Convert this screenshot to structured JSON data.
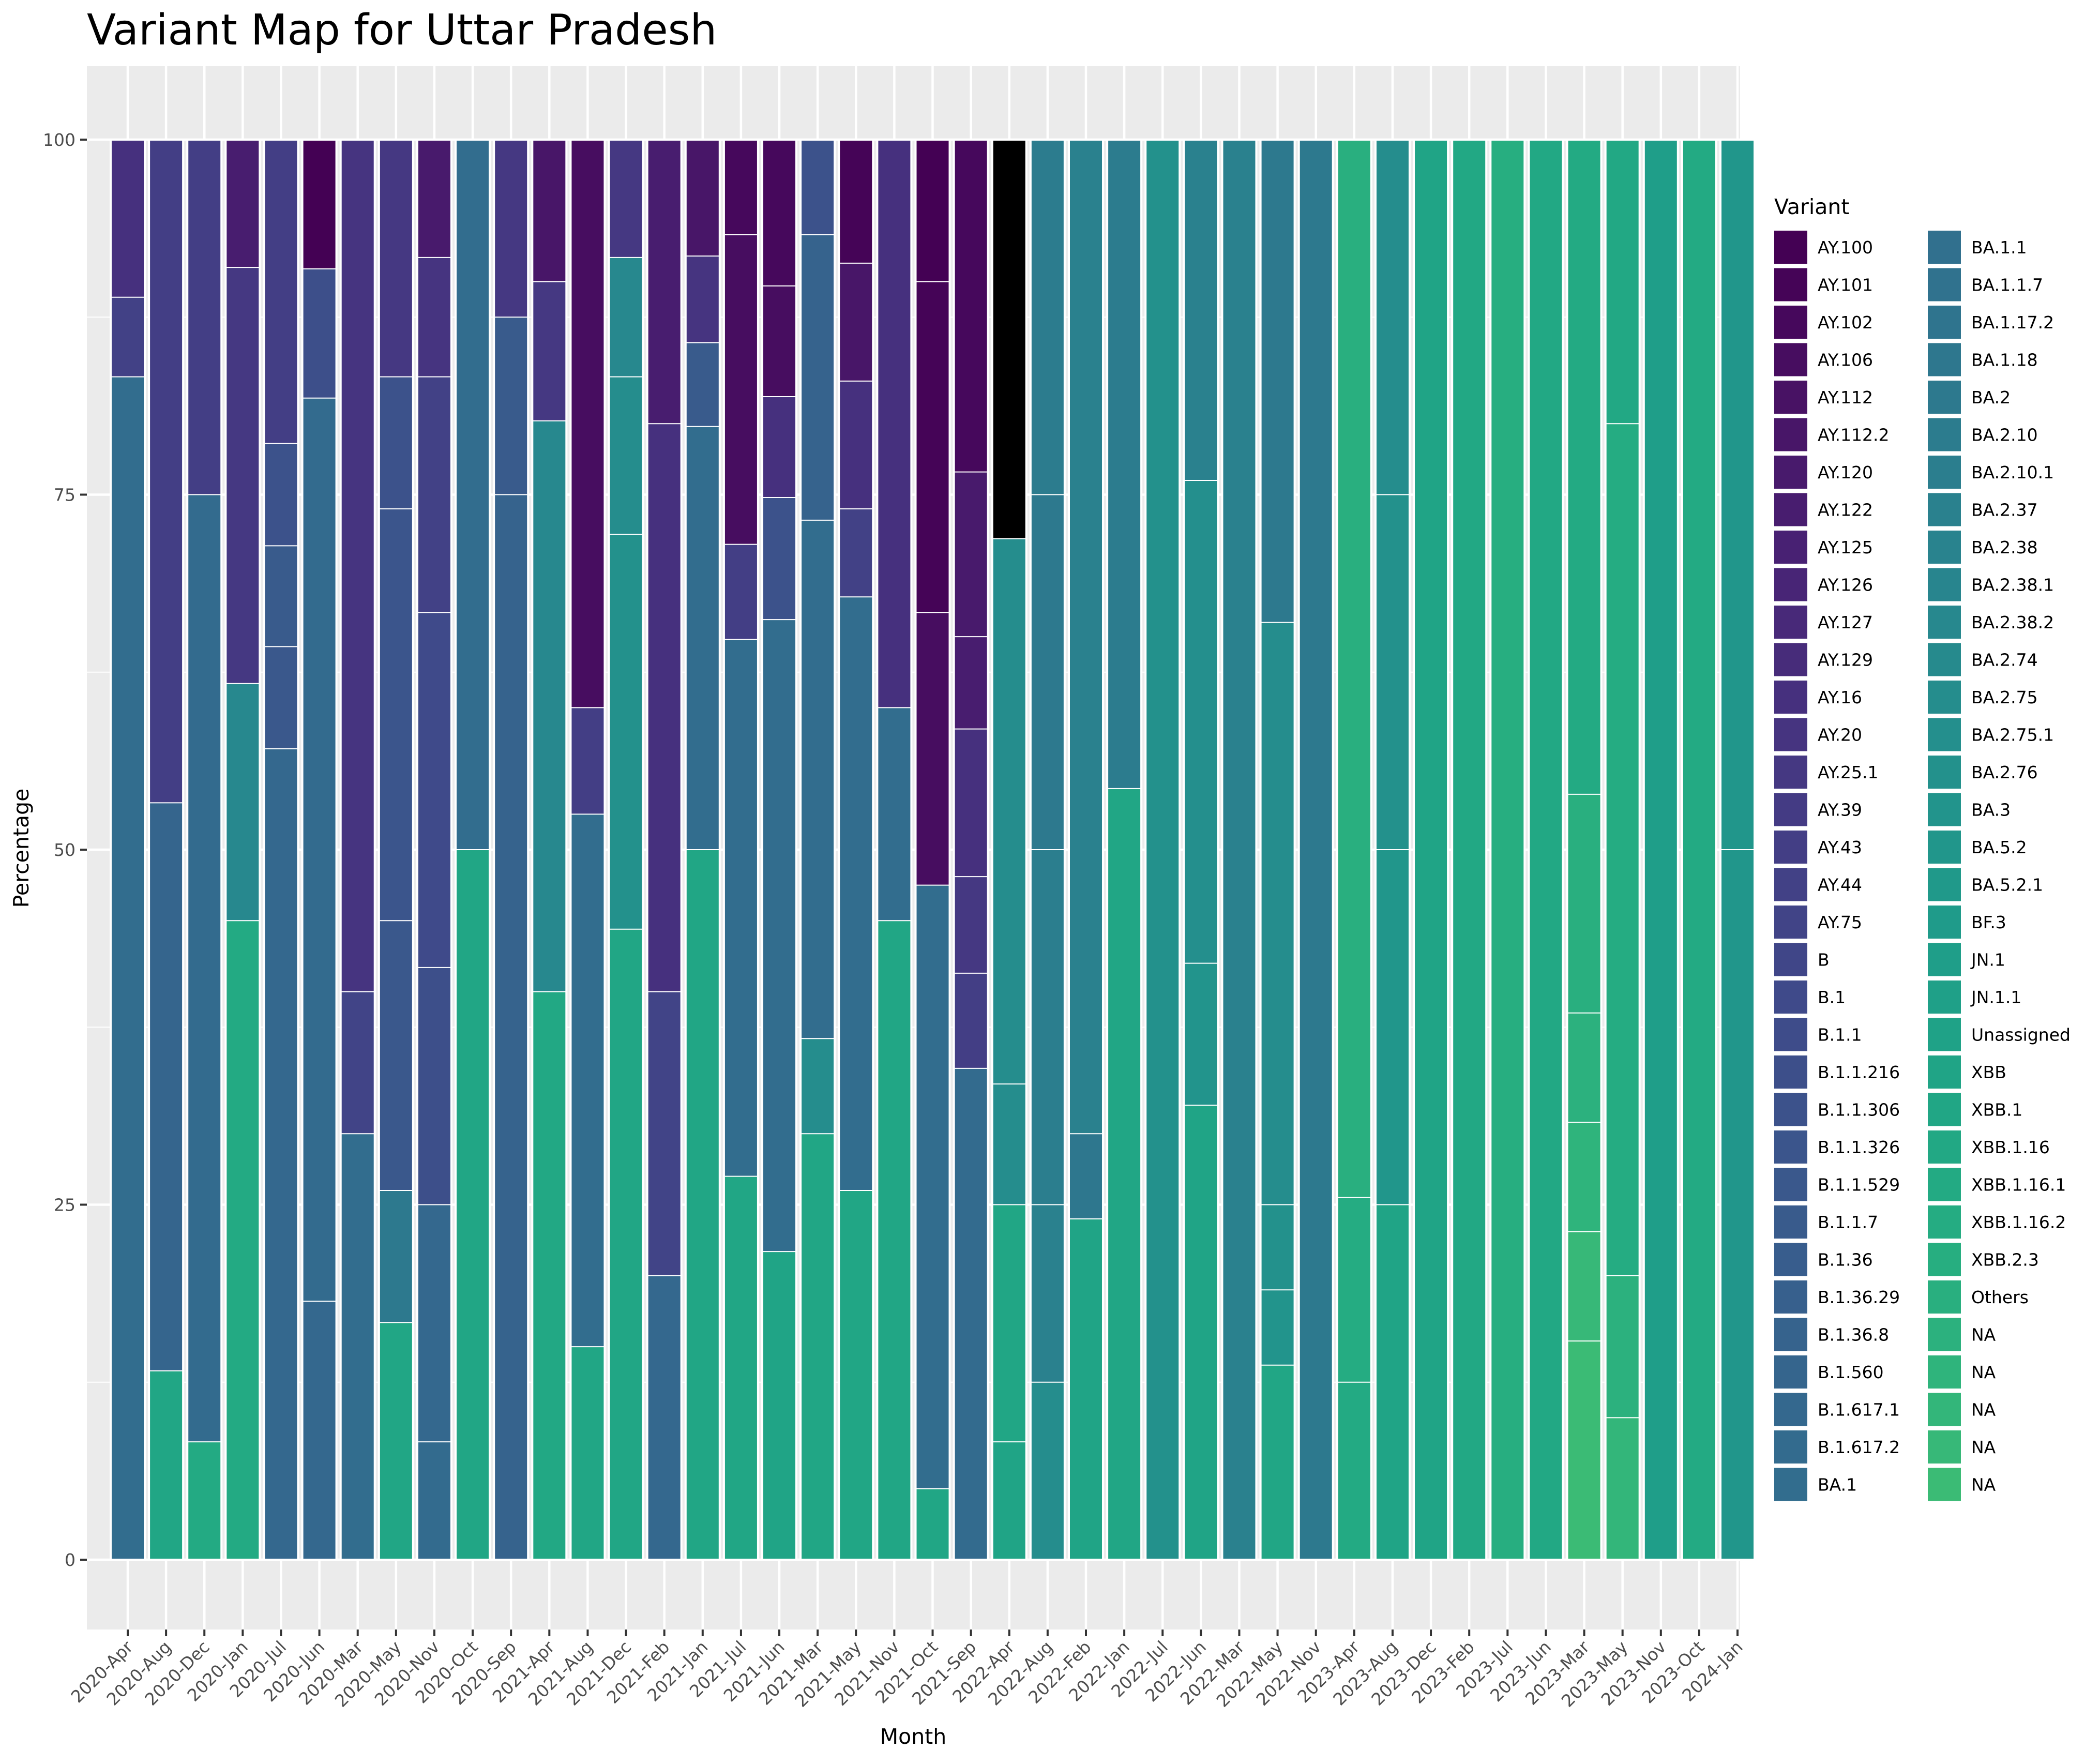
{
  "chart_data": {
    "type": "bar",
    "stacked": true,
    "title": "Variant Map for Uttar Pradesh",
    "xlabel": "Month",
    "ylabel": "Percentage",
    "ylim": [
      0,
      100
    ],
    "yticks": [
      0,
      25,
      50,
      75,
      100
    ],
    "grid": true,
    "legend_position": "right",
    "legend_title": "Variant",
    "categories": [
      "2020-Apr",
      "2020-Aug",
      "2020-Dec",
      "2020-Jan",
      "2020-Jul",
      "2020-Jun",
      "2020-Mar",
      "2020-May",
      "2020-Nov",
      "2020-Oct",
      "2020-Sep",
      "2021-Apr",
      "2021-Aug",
      "2021-Dec",
      "2021-Feb",
      "2021-Jan",
      "2021-Jul",
      "2021-Jun",
      "2021-Mar",
      "2021-May",
      "2021-Nov",
      "2021-Oct",
      "2021-Sep",
      "2022-Apr",
      "2022-Aug",
      "2022-Feb",
      "2022-Jan",
      "2022-Jul",
      "2022-Jun",
      "2022-Mar",
      "2022-May",
      "2022-Nov",
      "2023-Apr",
      "2023-Aug",
      "2023-Dec",
      "2023-Feb",
      "2023-Jul",
      "2023-Jun",
      "2023-Mar",
      "2023-May",
      "2023-Nov",
      "2023-Oct",
      "2024-Jan"
    ],
    "variants": [
      {
        "name": "AY.100",
        "color": "#440154"
      },
      {
        "name": "AY.101",
        "color": "#450457"
      },
      {
        "name": "AY.102",
        "color": "#46085c"
      },
      {
        "name": "AY.106",
        "color": "#470d60"
      },
      {
        "name": "AY.112",
        "color": "#481264"
      },
      {
        "name": "AY.112.2",
        "color": "#481668"
      },
      {
        "name": "AY.120",
        "color": "#481a6c"
      },
      {
        "name": "AY.122",
        "color": "#481d6f"
      },
      {
        "name": "AY.125",
        "color": "#482173"
      },
      {
        "name": "AY.126",
        "color": "#482576"
      },
      {
        "name": "AY.127",
        "color": "#482979"
      },
      {
        "name": "AY.129",
        "color": "#472c7a"
      },
      {
        "name": "AY.16",
        "color": "#46307e"
      },
      {
        "name": "AY.20",
        "color": "#463480"
      },
      {
        "name": "AY.25.1",
        "color": "#453882"
      },
      {
        "name": "AY.39",
        "color": "#443b84"
      },
      {
        "name": "AY.43",
        "color": "#433e85"
      },
      {
        "name": "AY.44",
        "color": "#424186"
      },
      {
        "name": "AY.75",
        "color": "#414487"
      },
      {
        "name": "B",
        "color": "#404688"
      },
      {
        "name": "B.1",
        "color": "#3f4a8a"
      },
      {
        "name": "B.1.1",
        "color": "#3e4c8a"
      },
      {
        "name": "B.1.1.216",
        "color": "#3d4f8a"
      },
      {
        "name": "B.1.1.306",
        "color": "#3c528b"
      },
      {
        "name": "B.1.1.326",
        "color": "#3b558c"
      },
      {
        "name": "B.1.1.529",
        "color": "#3a588c"
      },
      {
        "name": "B.1.1.7",
        "color": "#395b8c"
      },
      {
        "name": "B.1.36",
        "color": "#385d8d"
      },
      {
        "name": "B.1.36.29",
        "color": "#37608d"
      },
      {
        "name": "B.1.36.8",
        "color": "#36638d"
      },
      {
        "name": "B.1.560",
        "color": "#35658d"
      },
      {
        "name": "B.1.617.1",
        "color": "#34688e"
      },
      {
        "name": "B.1.617.2",
        "color": "#336b8e"
      },
      {
        "name": "BA.1",
        "color": "#326d8e"
      },
      {
        "name": "BA.1.1",
        "color": "#31708e"
      },
      {
        "name": "BA.1.1.7",
        "color": "#30728e"
      },
      {
        "name": "BA.1.17.2",
        "color": "#2f748e"
      },
      {
        "name": "BA.1.18",
        "color": "#2e778e"
      },
      {
        "name": "BA.2",
        "color": "#2d798e"
      },
      {
        "name": "BA.2.10",
        "color": "#2c7c8e"
      },
      {
        "name": "BA.2.10.1",
        "color": "#2b7e8e"
      },
      {
        "name": "BA.2.37",
        "color": "#2a818e"
      },
      {
        "name": "BA.2.38",
        "color": "#29838e"
      },
      {
        "name": "BA.2.38.1",
        "color": "#28858e"
      },
      {
        "name": "BA.2.38.2",
        "color": "#27888e"
      },
      {
        "name": "BA.2.74",
        "color": "#268a8d"
      },
      {
        "name": "BA.2.75",
        "color": "#258d8d"
      },
      {
        "name": "BA.2.75.1",
        "color": "#248f8d"
      },
      {
        "name": "BA.2.76",
        "color": "#23918c"
      },
      {
        "name": "BA.3",
        "color": "#22948c"
      },
      {
        "name": "BA.5.2",
        "color": "#21968b"
      },
      {
        "name": "BA.5.2.1",
        "color": "#20998a"
      },
      {
        "name": "BF.3",
        "color": "#1f9b8a"
      },
      {
        "name": "JN.1",
        "color": "#1f9e89"
      },
      {
        "name": "JN.1.1",
        "color": "#1fa088"
      },
      {
        "name": "Unassigned",
        "color": "#1fa287"
      },
      {
        "name": "XBB",
        "color": "#20a486"
      },
      {
        "name": "XBB.1",
        "color": "#21a685"
      },
      {
        "name": "XBB.1.16",
        "color": "#22a884"
      },
      {
        "name": "XBB.1.16.1",
        "color": "#23aa83"
      },
      {
        "name": "XBB.1.16.2",
        "color": "#25ac82"
      },
      {
        "name": "XBB.2.3",
        "color": "#27ae80"
      },
      {
        "name": "Others",
        "color": "#29af7f"
      },
      {
        "name": "NA",
        "color": "#2cb17e"
      },
      {
        "name": "NA",
        "color": "#2fb47c"
      },
      {
        "name": "NA",
        "color": "#33b67a"
      },
      {
        "name": "NA",
        "color": "#37b878"
      },
      {
        "name": "NA",
        "color": "#3bbb75"
      }
    ],
    "boundaries": [
      [
        0,
        83.3,
        88.9,
        100
      ],
      [
        0,
        13.3,
        53.3,
        100
      ],
      [
        0,
        8.3,
        75,
        100
      ],
      [
        0,
        45,
        61.7,
        91,
        100
      ],
      [
        0,
        57.1,
        64.3,
        71.4,
        78.6,
        100
      ],
      [
        0,
        18.2,
        81.8,
        90.9,
        100
      ],
      [
        0,
        30,
        40,
        100
      ],
      [
        0,
        16.7,
        26,
        45,
        74,
        83.3,
        100
      ],
      [
        0,
        8.3,
        25,
        41.7,
        66.7,
        83.3,
        91.7,
        100
      ],
      [
        0,
        50,
        100
      ],
      [
        0,
        75,
        87.5,
        100
      ],
      [
        0,
        40,
        80.2,
        90,
        100
      ],
      [
        0,
        15,
        52.5,
        60,
        100
      ],
      [
        0,
        44.4,
        72.2,
        83.3,
        91.7,
        100
      ],
      [
        0,
        20,
        40,
        80,
        100
      ],
      [
        0,
        50,
        79.8,
        85.7,
        91.8,
        100
      ],
      [
        0,
        27,
        64.8,
        71.5,
        93.3,
        100
      ],
      [
        0,
        21.7,
        66.2,
        74.8,
        81.9,
        89.7,
        100
      ],
      [
        0,
        30,
        36.7,
        73.2,
        93.3,
        100
      ],
      [
        0,
        26,
        67.8,
        74,
        83,
        91.3,
        100
      ],
      [
        0,
        45,
        60,
        100
      ],
      [
        0,
        5,
        47.5,
        66.7,
        90,
        100
      ],
      [
        0,
        34.6,
        41.3,
        48.1,
        58.5,
        65,
        76.6,
        100
      ],
      [
        0,
        8.3,
        25,
        33.5,
        71.9,
        100
      ],
      [
        0,
        12.5,
        25,
        50,
        75,
        100
      ],
      [
        0,
        24,
        30,
        100
      ],
      [
        0,
        54.3,
        100
      ],
      [
        0,
        100
      ],
      [
        0,
        32,
        42,
        76,
        100
      ],
      [
        0,
        100
      ],
      [
        0,
        13.7,
        19,
        25,
        66,
        100
      ],
      [
        0,
        100
      ],
      [
        0,
        12.5,
        25.5,
        100
      ],
      [
        0,
        25,
        50,
        75,
        100
      ],
      [
        0,
        100
      ],
      [
        0,
        100
      ],
      [
        0,
        100
      ],
      [
        0,
        100
      ],
      [
        0,
        15.4,
        23.1,
        30.8,
        38.5,
        53.9,
        100
      ],
      [
        0,
        10,
        20,
        80,
        100
      ],
      [
        0,
        100
      ],
      [
        0,
        100
      ],
      [
        0,
        50,
        100
      ]
    ],
    "colors": [
      [
        "#326d8e",
        "#424186",
        "#46307e"
      ],
      [
        "#21a685",
        "#35658d",
        "#433e85"
      ],
      [
        "#23aa83",
        "#336b8e",
        "#433e85"
      ],
      [
        "#23aa83",
        "#27888e",
        "#453882",
        "#481d6f"
      ],
      [
        "#34688e",
        "#3a588c",
        "#395b8c",
        "#3c528b",
        "#433e85"
      ],
      [
        "#34688e",
        "#336b8e",
        "#3d4f8a",
        "#440154"
      ],
      [
        "#326d8e",
        "#414487",
        "#463480"
      ],
      [
        "#21a685",
        "#2d798e",
        "#3a588c",
        "#3b558c",
        "#3c528b",
        "#453882"
      ],
      [
        "#336b8e",
        "#34688e",
        "#3d4f8a",
        "#3f4a8a",
        "#424186",
        "#463480",
        "#481a6c"
      ],
      [
        "#21a685",
        "#326d8e"
      ],
      [
        "#36638d",
        "#395b8c",
        "#453882"
      ],
      [
        "#22a884",
        "#27888e",
        "#453882",
        "#481668"
      ],
      [
        "#21a685",
        "#326d8e",
        "#433e85",
        "#470d60"
      ],
      [
        "#21a685",
        "#23918c",
        "#258d8d",
        "#27888e",
        "#453882"
      ],
      [
        "#34688e",
        "#414487",
        "#46307e",
        "#481d6f"
      ],
      [
        "#21a685",
        "#326d8e",
        "#395b8c",
        "#463480",
        "#481668"
      ],
      [
        "#21a685",
        "#326d8e",
        "#433e85",
        "#470d60",
        "#46085c"
      ],
      [
        "#20a486",
        "#326d8e",
        "#3c528b",
        "#46307e",
        "#470d60",
        "#46085c"
      ],
      [
        "#21a685",
        "#258d8d",
        "#326d8e",
        "#36638d",
        "#3c528b"
      ],
      [
        "#21a685",
        "#326d8e",
        "#424186",
        "#46307e",
        "#481668",
        "#450457"
      ],
      [
        "#21a685",
        "#326d8e",
        "#46307e"
      ],
      [
        "#21a685",
        "#326d8e",
        "#470d60",
        "#450457",
        "#440154"
      ],
      [
        "#336b8e",
        "#433e85",
        "#453882",
        "#46307e",
        "#481d6f",
        "#481a6c",
        "#46085c"
      ],
      [
        "#20a486",
        "#21a685",
        "#258d8d",
        "#258d8d"
      ],
      [
        "#258d8d",
        "#2a818e",
        "#2b7e8e",
        "#2d798e",
        "#2c7c8e"
      ],
      [
        "#20a486",
        "#2e778e",
        "#2a818e"
      ],
      [
        "#21a685",
        "#2c7c8e"
      ],
      [
        "#23918c"
      ],
      [
        "#20a486",
        "#22948c",
        "#248f8d",
        "#2a818e"
      ],
      [
        "#2a818e"
      ],
      [
        "#21a685",
        "#22948c",
        "#23918c",
        "#258d8d",
        "#2d798e"
      ],
      [
        "#2d798e"
      ],
      [
        "#23aa83",
        "#25ac82",
        "#29af7f"
      ],
      [
        "#20a486",
        "#21968b",
        "#23918c",
        "#258d8d"
      ],
      [
        "#20a486"
      ],
      [
        "#22a884"
      ],
      [
        "#27ae80"
      ],
      [
        "#22a884"
      ],
      [
        "#3bbb75",
        "#37b878",
        "#2fb47c",
        "#2cb17e",
        "#29af7f",
        "#23aa83"
      ],
      [
        "#33b67a",
        "#2cb17e",
        "#25ac82",
        "#22a884"
      ],
      [
        "#1f9e89"
      ],
      [
        "#23aa83"
      ],
      [
        "#21968b",
        "#21968b"
      ]
    ]
  }
}
